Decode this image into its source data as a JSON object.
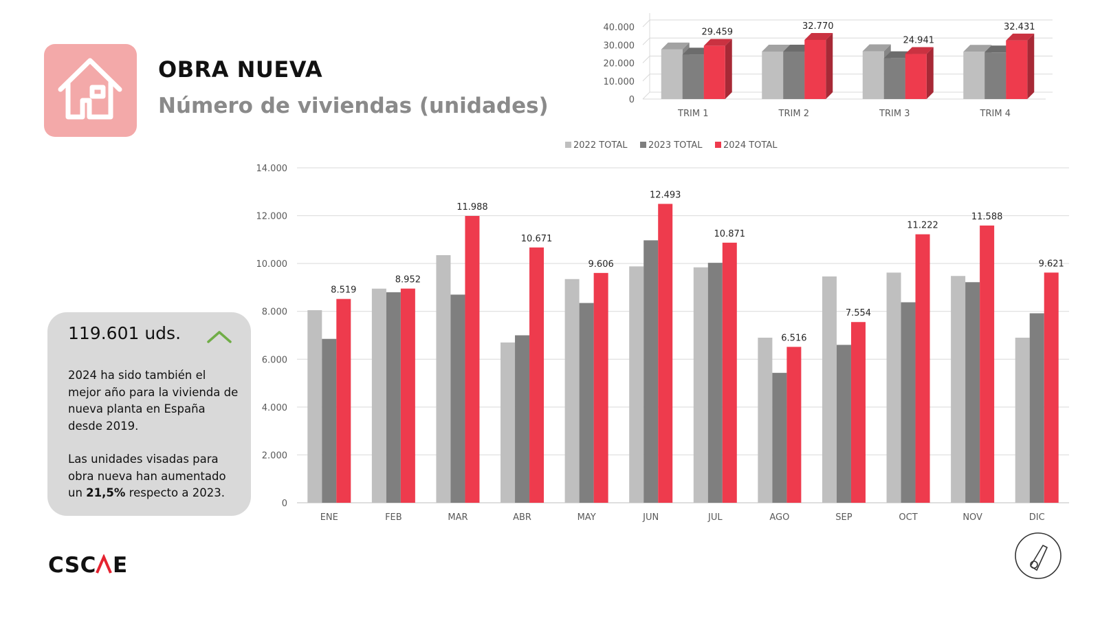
{
  "header": {
    "title": "OBRA NUEVA",
    "subtitle": "Número de viviendas (unidades)"
  },
  "summary": {
    "total": "119.601 uds.",
    "p1": "2024 ha sido también el mejor año para la vivienda de nueva planta en España desde 2019.",
    "p2_pre": "Las unidades visadas para obra nueva han aumentado un ",
    "p2_bold": "21,5%",
    "p2_post": " respecto a 2023."
  },
  "logo": {
    "text": "CSCAE"
  },
  "colors": {
    "series_2022": "#bfbfbf",
    "series_2023": "#7f7f7f",
    "series_2024": "#ee3b4d",
    "accent_green": "#70ad47",
    "house_bg": "#f3a9a9"
  },
  "icons": [
    "house-icon",
    "chevron-up-icon",
    "compass-icon"
  ],
  "chart_data": [
    {
      "type": "bar",
      "categories": [
        "TRIM 1",
        "TRIM 2",
        "TRIM 3",
        "TRIM 4"
      ],
      "series": [
        {
          "name": "2022 TOTAL",
          "values": [
            27500,
            26300,
            26500,
            26200
          ]
        },
        {
          "name": "2023 TOTAL",
          "values": [
            24600,
            26300,
            22600,
            25800
          ]
        },
        {
          "name": "2024 TOTAL",
          "values": [
            29459,
            32770,
            24941,
            32431
          ]
        }
      ],
      "data_labels": [
        "29.459",
        "32.770",
        "24.941",
        "32.431"
      ],
      "y_ticks": [
        "0",
        "10.000",
        "20.000",
        "30.000",
        "40.000"
      ],
      "ylim": [
        0,
        40000
      ],
      "style": "3d-clustered",
      "grid": true
    },
    {
      "type": "bar",
      "categories": [
        "ENE",
        "FEB",
        "MAR",
        "ABR",
        "MAY",
        "JUN",
        "JUL",
        "AGO",
        "SEP",
        "OCT",
        "NOV",
        "DIC"
      ],
      "series": [
        {
          "name": "2022 TOTAL",
          "values": [
            8050,
            8950,
            10350,
            6700,
            9350,
            9880,
            9840,
            6900,
            9460,
            9620,
            9480,
            6900
          ]
        },
        {
          "name": "2023 TOTAL",
          "values": [
            6850,
            8800,
            8700,
            7000,
            8350,
            10970,
            10030,
            5430,
            6600,
            8380,
            9220,
            7920
          ]
        },
        {
          "name": "2024 TOTAL",
          "values": [
            8519,
            8952,
            11988,
            10671,
            9606,
            12493,
            10871,
            6516,
            7554,
            11222,
            11588,
            9621
          ]
        }
      ],
      "data_labels": [
        "8.519",
        "8.952",
        "11.988",
        "10.671",
        "9.606",
        "12.493",
        "10.871",
        "6.516",
        "7.554",
        "11.222",
        "11.588",
        "9.621"
      ],
      "y_ticks": [
        "0",
        "2.000",
        "4.000",
        "6.000",
        "8.000",
        "10.000",
        "12.000",
        "14.000"
      ],
      "ylim": [
        0,
        14000
      ],
      "legend_position": "top",
      "grid": true
    }
  ]
}
